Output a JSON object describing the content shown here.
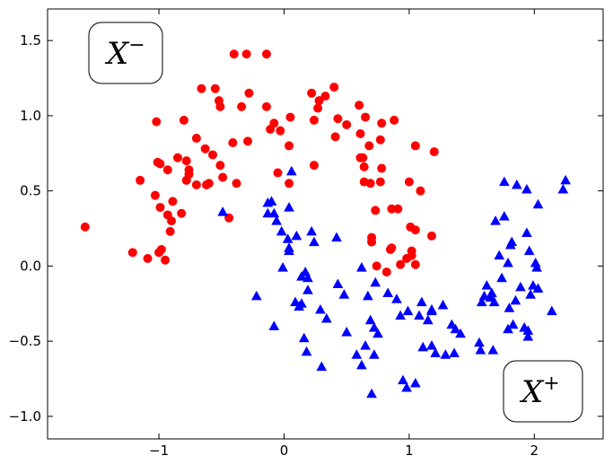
{
  "chart_data": {
    "type": "scatter",
    "xlim": [
      -1.89,
      2.55
    ],
    "ylim": [
      -1.15,
      1.71
    ],
    "xticks": [
      {
        "value": -1,
        "label": "−1"
      },
      0,
      1,
      2
    ],
    "yticks": [
      {
        "value": -1.0,
        "label": "−1.0"
      },
      {
        "value": -0.5,
        "label": "−0.5"
      },
      {
        "value": 0.0,
        "label": "0.0"
      },
      0.5,
      {
        "value": 1.0,
        "label": "1.0"
      },
      1.5
    ],
    "grid": false,
    "annotations": [
      {
        "base": "X",
        "sup": "−"
      },
      {
        "base": "X",
        "sup": "+"
      }
    ],
    "series": [
      {
        "color": "#ff0000",
        "marker": "circle",
        "x": [
          -1.59,
          -1.21,
          -1.09,
          -1.15,
          -1.02,
          -1.01,
          -0.99,
          -1.03,
          -0.99,
          -0.93,
          -0.89,
          -0.9,
          -0.91,
          -0.98,
          -1.0,
          -0.95,
          -0.93,
          -0.82,
          -0.85,
          -0.78,
          -0.8,
          -0.78,
          -0.76,
          -0.76,
          -0.7,
          -0.7,
          -0.66,
          -0.63,
          -0.62,
          -0.6,
          -0.57,
          -0.55,
          -0.52,
          -0.51,
          -0.51,
          -0.49,
          -0.44,
          -0.41,
          -0.4,
          -0.38,
          -0.34,
          -0.3,
          -0.29,
          -0.28,
          -0.14,
          -0.14,
          -0.11,
          -0.08,
          -0.03,
          -0.05,
          0.04,
          0.05,
          0.04,
          0.22,
          0.24,
          0.24,
          0.27,
          0.28,
          0.33,
          0.4,
          0.41,
          0.43,
          0.5,
          0.6,
          0.61,
          0.61,
          0.64,
          0.63,
          0.64,
          0.65,
          0.68,
          0.69,
          0.7,
          0.7,
          0.73,
          0.74,
          0.77,
          0.78,
          0.77,
          0.78,
          0.82,
          0.85,
          0.86,
          0.86,
          0.88,
          0.91,
          0.93,
          0.98,
          1.0,
          1.01,
          1.02,
          1.02,
          1.05,
          1.05,
          1.05,
          1.09,
          1.18,
          1.2
        ],
        "y": [
          0.26,
          0.09,
          0.05,
          0.57,
          0.96,
          0.69,
          0.68,
          0.47,
          0.39,
          0.34,
          0.43,
          0.3,
          0.23,
          0.11,
          0.09,
          0.04,
          0.64,
          0.35,
          0.72,
          0.7,
          0.97,
          0.57,
          0.64,
          0.61,
          0.54,
          0.85,
          1.18,
          0.78,
          0.54,
          0.55,
          0.74,
          1.18,
          1.1,
          1.06,
          0.67,
          0.59,
          0.32,
          0.82,
          1.41,
          0.55,
          1.06,
          1.41,
          0.83,
          1.15,
          1.41,
          1.06,
          0.91,
          0.95,
          0.9,
          0.62,
          0.8,
          0.99,
          0.55,
          1.15,
          0.67,
          0.97,
          1.05,
          1.1,
          1.13,
          1.19,
          0.86,
          0.98,
          0.94,
          1.07,
          0.88,
          0.72,
          0.66,
          0.72,
          0.56,
          0.99,
          0.8,
          0.55,
          0.19,
          0.16,
          0.37,
          0.0,
          0.84,
          0.65,
          0.56,
          0.95,
          -0.04,
          0.11,
          0.12,
          0.38,
          0.97,
          0.38,
          0.01,
          0.05,
          0.56,
          0.26,
          0.1,
          0.07,
          0.01,
          0.24,
          0.8,
          0.5,
          0.2,
          0.76
        ]
      },
      {
        "color": "#0000ff",
        "marker": "triangle",
        "x": [
          -0.22,
          -0.13,
          -0.1,
          -0.13,
          -0.08,
          -0.06,
          -0.08,
          -0.02,
          -0.01,
          0.03,
          0.04,
          0.04,
          0.06,
          0.04,
          0.1,
          0.09,
          0.12,
          0.14,
          0.16,
          0.14,
          0.17,
          0.19,
          0.18,
          0.19,
          0.22,
          0.24,
          0.29,
          0.3,
          0.34,
          0.42,
          0.43,
          0.48,
          0.5,
          0.58,
          0.62,
          0.62,
          0.65,
          0.67,
          0.69,
          0.7,
          0.72,
          0.72,
          0.73,
          0.75,
          0.83,
          0.9,
          0.93,
          0.95,
          0.98,
          0.99,
          1.05,
          1.1,
          1.08,
          1.11,
          1.15,
          1.18,
          1.18,
          1.18,
          1.21,
          1.27,
          1.29,
          1.34,
          1.36,
          1.37,
          1.41,
          1.56,
          1.57,
          1.58,
          1.6,
          1.62,
          1.65,
          1.66,
          1.67,
          1.68,
          1.69,
          1.72,
          1.74,
          1.76,
          1.76,
          1.79,
          1.8,
          1.81,
          1.82,
          1.79,
          1.83,
          1.85,
          1.86,
          1.89,
          1.92,
          1.95,
          1.94,
          1.94,
          1.95,
          1.96,
          1.97,
          1.99,
          2.01,
          2.02,
          2.03,
          2.03,
          2.14,
          2.23,
          2.25,
          -0.49
        ],
        "y": [
          -0.2,
          0.42,
          0.43,
          0.35,
          0.35,
          0.3,
          -0.4,
          0.23,
          -0.01,
          0.18,
          0.12,
          0.39,
          0.63,
          0.1,
          0.2,
          -0.24,
          -0.27,
          -0.25,
          -0.48,
          -0.07,
          -0.04,
          -0.08,
          -0.57,
          -0.16,
          0.23,
          0.16,
          -0.29,
          -0.67,
          -0.35,
          0.19,
          -0.12,
          -0.19,
          -0.44,
          -0.59,
          -0.66,
          -0.01,
          -0.53,
          -0.2,
          -0.36,
          -0.85,
          -0.41,
          -0.59,
          -0.11,
          -0.45,
          -0.18,
          -0.22,
          -0.33,
          -0.76,
          -0.81,
          -0.3,
          -0.78,
          -0.24,
          -0.33,
          -0.54,
          -0.36,
          -0.3,
          -0.29,
          -0.53,
          -0.58,
          -0.26,
          -0.59,
          -0.39,
          -0.58,
          -0.42,
          -0.45,
          -0.51,
          -0.56,
          -0.24,
          -0.2,
          -0.13,
          -0.21,
          -0.18,
          -0.56,
          -0.24,
          0.3,
          0.07,
          -0.08,
          0.33,
          0.56,
          0.02,
          -0.28,
          0.14,
          0.16,
          -0.42,
          -0.39,
          -0.23,
          0.54,
          -0.14,
          -0.41,
          -0.43,
          0.22,
          0.51,
          -0.47,
          0.1,
          -0.19,
          -0.13,
          0.02,
          -0.01,
          -0.15,
          0.41,
          -0.3,
          0.51,
          0.57,
          0.36
        ]
      }
    ]
  }
}
